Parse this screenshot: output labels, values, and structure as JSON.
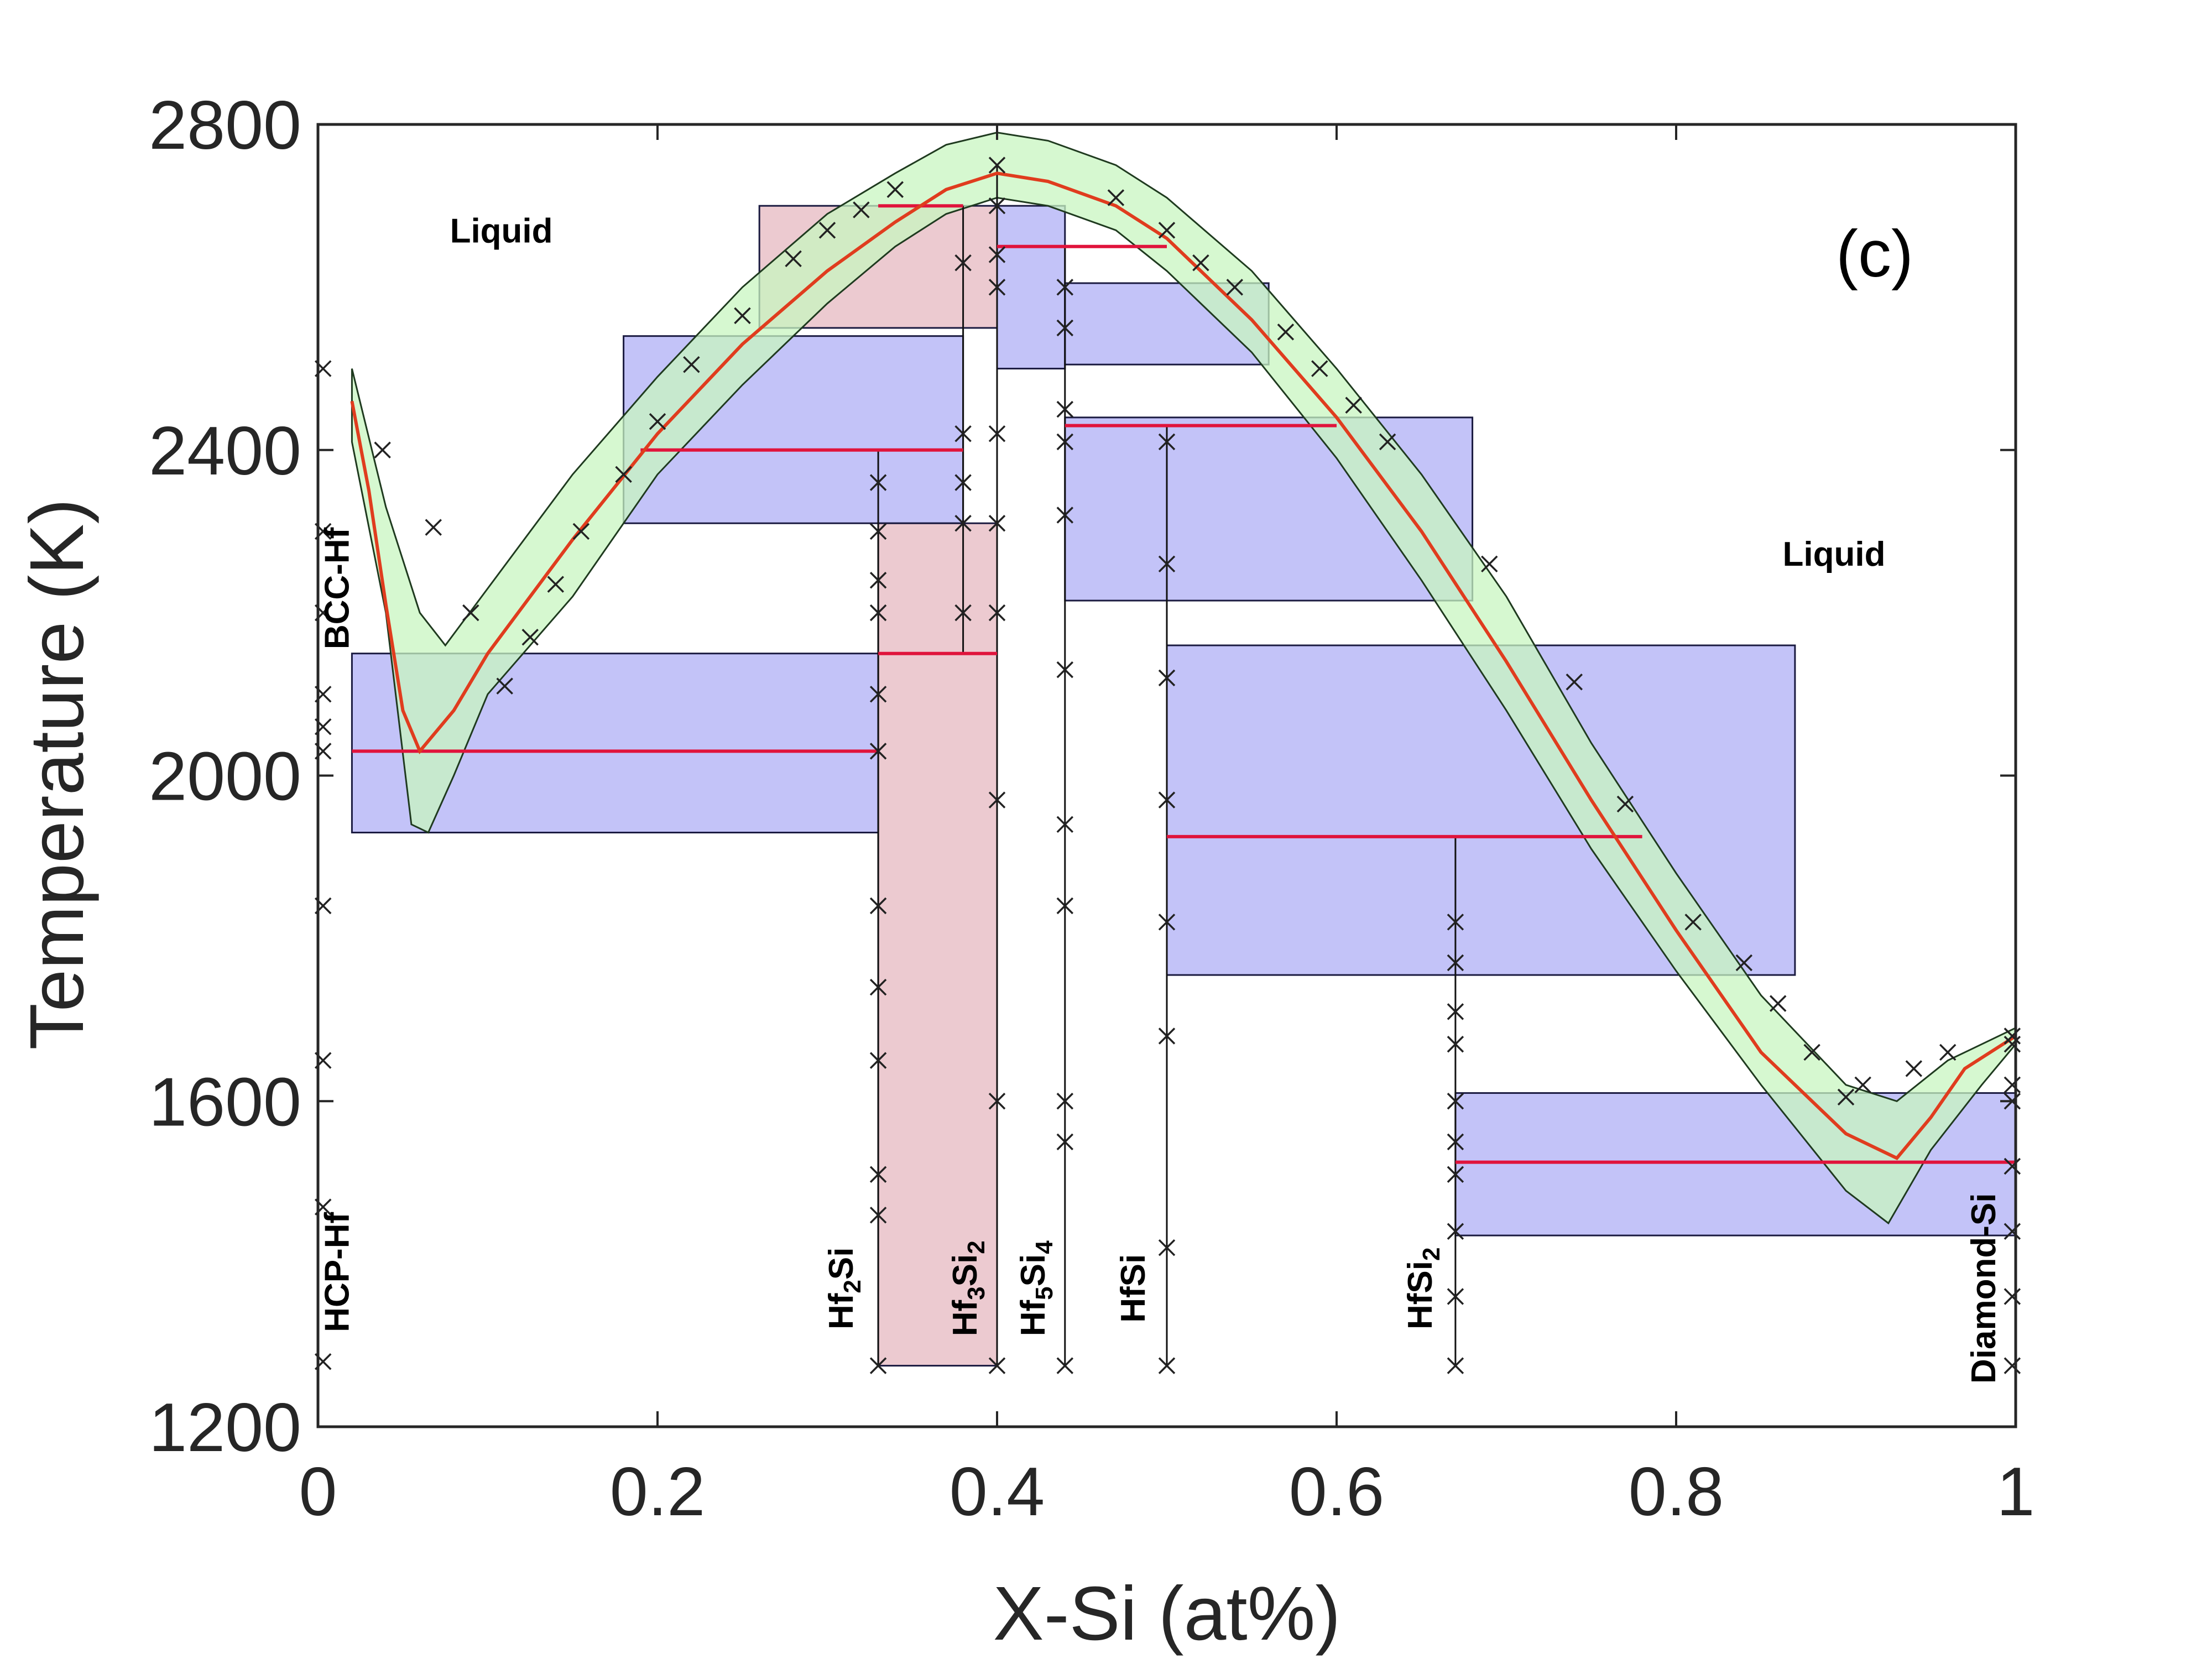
{
  "chart_data": {
    "type": "line",
    "panel_label": "(c)",
    "xlabel": "X-Si (at%)",
    "ylabel": "Temperature (K)",
    "xlim": [
      0,
      1
    ],
    "ylim": [
      1200,
      2800
    ],
    "xticks": [
      0,
      0.2,
      0.4,
      0.6,
      0.8,
      1
    ],
    "xtick_labels": [
      "0",
      "0.2",
      "0.4",
      "0.6",
      "0.8",
      "1"
    ],
    "yticks": [
      1200,
      1600,
      2000,
      2400,
      2800
    ],
    "ytick_labels": [
      "1200",
      "1600",
      "2000",
      "2400",
      "2800"
    ],
    "grid": false,
    "colors": {
      "uncertainty_band": "#c8f5c0",
      "liquidus": "#e03c1e",
      "invariant": "#e0143c",
      "two_phase_blue": "#aaaaf5",
      "two_phase_red": "#e4b4bc",
      "points": "#222222"
    },
    "region_labels": [
      {
        "text": "Liquid",
        "x": 0.108,
        "y": 2655
      },
      {
        "text": "Liquid",
        "x": 0.893,
        "y": 2258
      }
    ],
    "compound_labels": [
      {
        "main": "HCP-Hf",
        "sub": "",
        "x": 0.018,
        "y": 1390
      },
      {
        "main": "BCC-Hf",
        "sub": "",
        "x": 0.018,
        "y": 2230
      },
      {
        "main": "Hf",
        "sub": "2",
        "main2": "Si",
        "sub2": "",
        "x": 0.315,
        "y": 1370
      },
      {
        "main": "Hf",
        "sub": "3",
        "main2": "Si",
        "sub2": "2",
        "x": 0.388,
        "y": 1370
      },
      {
        "main": "Hf",
        "sub": "5",
        "main2": "Si",
        "sub2": "4",
        "x": 0.428,
        "y": 1370
      },
      {
        "main": "HfSi",
        "sub": "",
        "x": 0.487,
        "y": 1370
      },
      {
        "main": "HfSi",
        "sub": "2",
        "x": 0.656,
        "y": 1370
      },
      {
        "main": "Diamond-Si",
        "sub": "",
        "x": 0.988,
        "y": 1370
      }
    ],
    "liquidus": {
      "x": [
        0.02,
        0.03,
        0.04,
        0.05,
        0.06,
        0.08,
        0.1,
        0.15,
        0.2,
        0.25,
        0.3,
        0.34,
        0.37,
        0.4,
        0.43,
        0.47,
        0.5,
        0.55,
        0.6,
        0.65,
        0.7,
        0.75,
        0.8,
        0.85,
        0.9,
        0.93,
        0.95,
        0.97,
        1.0
      ],
      "y": [
        2460,
        2350,
        2210,
        2080,
        2030,
        2080,
        2150,
        2290,
        2420,
        2530,
        2620,
        2680,
        2720,
        2740,
        2730,
        2700,
        2660,
        2560,
        2440,
        2300,
        2140,
        1970,
        1810,
        1660,
        1560,
        1530,
        1580,
        1640,
        1680
      ]
    },
    "band_upper": {
      "x": [
        0.02,
        0.04,
        0.06,
        0.075,
        0.1,
        0.15,
        0.2,
        0.25,
        0.3,
        0.34,
        0.37,
        0.4,
        0.43,
        0.47,
        0.5,
        0.55,
        0.6,
        0.65,
        0.7,
        0.75,
        0.8,
        0.85,
        0.9,
        0.93,
        0.96,
        1.0
      ],
      "y": [
        2500,
        2330,
        2200,
        2160,
        2230,
        2370,
        2490,
        2600,
        2690,
        2740,
        2775,
        2790,
        2780,
        2750,
        2710,
        2620,
        2500,
        2370,
        2220,
        2040,
        1880,
        1730,
        1620,
        1600,
        1650,
        1690
      ]
    },
    "band_lower": {
      "x": [
        0.02,
        0.04,
        0.055,
        0.065,
        0.08,
        0.1,
        0.15,
        0.2,
        0.25,
        0.3,
        0.34,
        0.37,
        0.4,
        0.43,
        0.47,
        0.5,
        0.55,
        0.6,
        0.65,
        0.7,
        0.75,
        0.8,
        0.85,
        0.9,
        0.925,
        0.95,
        0.98,
        1.0
      ],
      "y": [
        2410,
        2200,
        1940,
        1930,
        2000,
        2100,
        2220,
        2370,
        2480,
        2580,
        2650,
        2690,
        2710,
        2700,
        2670,
        2620,
        2520,
        2390,
        2240,
        2080,
        1910,
        1760,
        1620,
        1490,
        1450,
        1540,
        1620,
        1670
      ]
    },
    "two_phase_regions": [
      {
        "color": "blue",
        "x": [
          0.02,
          0.33
        ],
        "y": [
          1930,
          2150
        ]
      },
      {
        "color": "blue",
        "x": [
          0.18,
          0.38
        ],
        "y": [
          2310,
          2540
        ]
      },
      {
        "color": "red",
        "x": [
          0.33,
          0.4
        ],
        "y": [
          1275,
          2310
        ]
      },
      {
        "color": "red",
        "x": [
          0.26,
          0.4
        ],
        "y": [
          2550,
          2700
        ]
      },
      {
        "color": "blue",
        "x": [
          0.4,
          0.44
        ],
        "y": [
          2500,
          2700
        ]
      },
      {
        "color": "blue",
        "x": [
          0.44,
          0.56
        ],
        "y": [
          2505,
          2605
        ]
      },
      {
        "color": "blue",
        "x": [
          0.44,
          0.68
        ],
        "y": [
          2215,
          2440
        ]
      },
      {
        "color": "blue",
        "x": [
          0.5,
          0.87
        ],
        "y": [
          1755,
          2160
        ]
      },
      {
        "color": "blue",
        "x": [
          0.67,
          1.0
        ],
        "y": [
          1435,
          1610
        ]
      }
    ],
    "invariant_lines": [
      {
        "x": [
          0.02,
          0.33
        ],
        "y": 2030
      },
      {
        "x": [
          0.19,
          0.38
        ],
        "y": 2400
      },
      {
        "x": [
          0.33,
          0.4
        ],
        "y": 2150
      },
      {
        "x": [
          0.33,
          0.38
        ],
        "y": 2700
      },
      {
        "x": [
          0.4,
          0.5
        ],
        "y": 2650
      },
      {
        "x": [
          0.44,
          0.6
        ],
        "y": 2430
      },
      {
        "x": [
          0.5,
          0.78
        ],
        "y": 1925
      },
      {
        "x": [
          0.67,
          1.0
        ],
        "y": 1525
      }
    ],
    "phase_boundaries": [
      {
        "x": 0.33,
        "y": [
          1275,
          2400
        ]
      },
      {
        "x": 0.38,
        "y": [
          2150,
          2700
        ]
      },
      {
        "x": 0.4,
        "y": [
          1275,
          2750
        ]
      },
      {
        "x": 0.44,
        "y": [
          1275,
          2650
        ]
      },
      {
        "x": 0.5,
        "y": [
          1275,
          2430
        ]
      },
      {
        "x": 0.67,
        "y": [
          1275,
          1925
        ]
      }
    ],
    "data_points": {
      "x": [
        0.003,
        0.003,
        0.003,
        0.003,
        0.003,
        0.003,
        0.003,
        0.003,
        0.003,
        0.003,
        0.038,
        0.068,
        0.09,
        0.11,
        0.125,
        0.14,
        0.155,
        0.18,
        0.2,
        0.22,
        0.25,
        0.28,
        0.3,
        0.32,
        0.34,
        0.33,
        0.33,
        0.33,
        0.33,
        0.33,
        0.33,
        0.33,
        0.33,
        0.33,
        0.33,
        0.33,
        0.33,
        0.38,
        0.38,
        0.38,
        0.38,
        0.38,
        0.4,
        0.4,
        0.4,
        0.4,
        0.4,
        0.4,
        0.4,
        0.4,
        0.4,
        0.4,
        0.44,
        0.44,
        0.44,
        0.44,
        0.44,
        0.44,
        0.44,
        0.44,
        0.44,
        0.44,
        0.44,
        0.47,
        0.5,
        0.5,
        0.5,
        0.5,
        0.5,
        0.5,
        0.5,
        0.5,
        0.5,
        0.52,
        0.54,
        0.57,
        0.59,
        0.61,
        0.63,
        0.69,
        0.74,
        0.77,
        0.81,
        0.84,
        0.86,
        0.88,
        0.9,
        0.91,
        0.94,
        0.96,
        0.67,
        0.67,
        0.67,
        0.67,
        0.67,
        0.67,
        0.67,
        0.67,
        0.67,
        0.67,
        0.998,
        0.998,
        0.998,
        0.998,
        0.998,
        0.998,
        0.998,
        0.998
      ],
      "y": [
        2500,
        2300,
        2200,
        2100,
        2060,
        2030,
        1840,
        1650,
        1470,
        1280,
        2400,
        2305,
        2200,
        2110,
        2170,
        2235,
        2300,
        2370,
        2435,
        2505,
        2565,
        2635,
        2670,
        2695,
        2720,
        2360,
        2300,
        2240,
        2200,
        2100,
        2030,
        1840,
        1740,
        1650,
        1510,
        1460,
        1275,
        2630,
        2420,
        2360,
        2310,
        2200,
        2750,
        2700,
        2640,
        2600,
        2420,
        2310,
        2200,
        1970,
        1600,
        1275,
        2600,
        2550,
        2450,
        2410,
        2320,
        2130,
        1940,
        1840,
        1600,
        1550,
        1275,
        2710,
        2670,
        2410,
        2260,
        2120,
        1970,
        1820,
        1680,
        1420,
        1275,
        2630,
        2600,
        2545,
        2500,
        2455,
        2410,
        2260,
        2115,
        1965,
        1820,
        1770,
        1720,
        1660,
        1605,
        1620,
        1640,
        1660,
        1820,
        1770,
        1710,
        1670,
        1600,
        1550,
        1510,
        1440,
        1360,
        1275,
        1670,
        1620,
        1600,
        1520,
        1440,
        1360,
        1275,
        1680
      ]
    }
  }
}
